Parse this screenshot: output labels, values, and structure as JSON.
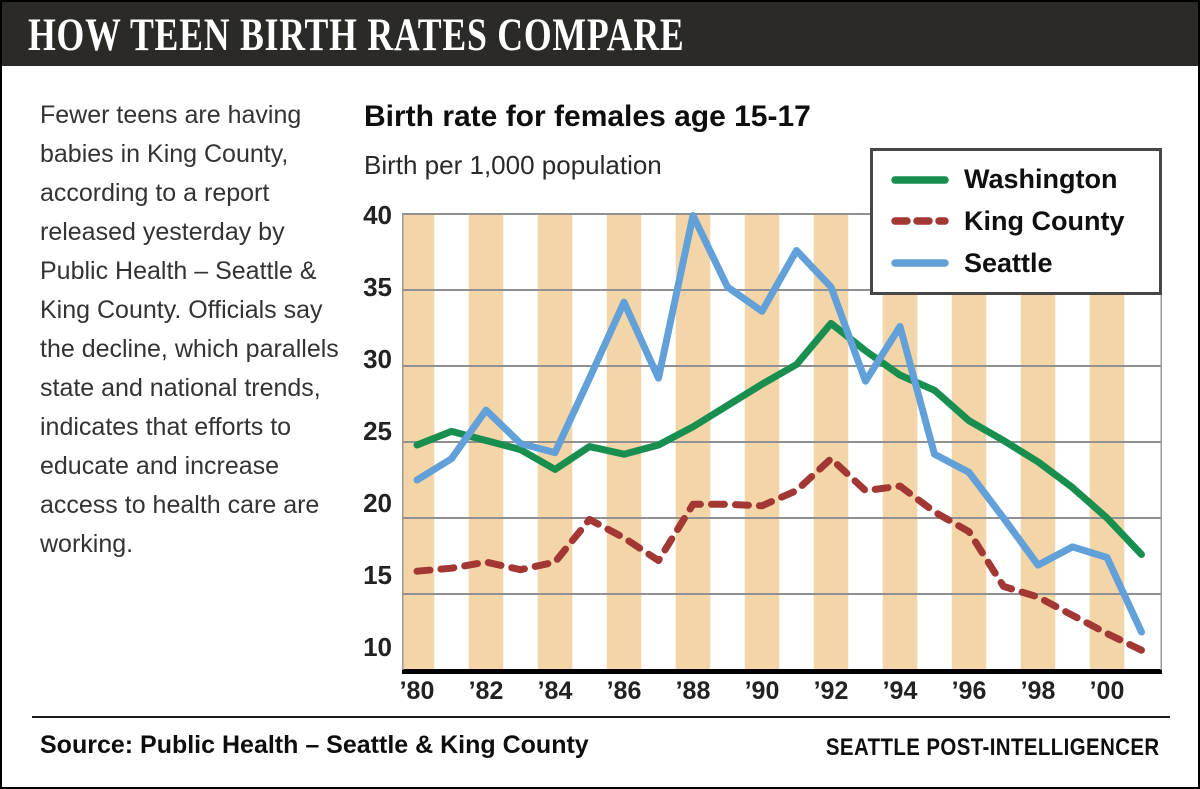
{
  "banner": {
    "title": "HOW TEEN BIRTH RATES COMPARE"
  },
  "intro_text": "Fewer teens are having babies in King County, according to a report released yesterday by Public Health – Seattle & King County. Officials say the decline, which parallels state and national trends, indicates that efforts to educate and increase access to health care are working.",
  "chart": {
    "title": "Birth rate for females age 15-17",
    "subtitle": "Birth per 1,000 population"
  },
  "chart_data": {
    "type": "line",
    "x": [
      1980,
      1981,
      1982,
      1983,
      1984,
      1985,
      1986,
      1987,
      1988,
      1989,
      1990,
      1991,
      1992,
      1993,
      1994,
      1995,
      1996,
      1997,
      1998,
      1999,
      2000,
      2001
    ],
    "x_tick_labels": [
      "’80",
      "’82",
      "’84",
      "’86",
      "’88",
      "’90",
      "’92",
      "’94",
      "’96",
      "’98",
      "’00"
    ],
    "yticks": [
      40,
      35,
      30,
      25,
      20,
      15,
      10
    ],
    "ylim": [
      10,
      40
    ],
    "grid": "horizontal",
    "legend_position": "top-right",
    "band_color": "#f3d5a7",
    "gridline_color": "#909090",
    "axis_color": "#000000",
    "series": [
      {
        "name": "Washington",
        "color": "#188f4e",
        "style": "solid",
        "values": [
          24.8,
          25.7,
          25.1,
          24.5,
          23.2,
          24.7,
          24.2,
          24.8,
          26.0,
          27.4,
          28.8,
          30.1,
          32.8,
          31.0,
          29.4,
          28.4,
          26.4,
          25.1,
          23.7,
          22.0,
          20.0,
          17.6
        ]
      },
      {
        "name": "King County",
        "color": "#a23733",
        "style": "dashed",
        "values": [
          16.5,
          16.7,
          17.1,
          16.6,
          17.1,
          19.9,
          18.7,
          17.2,
          20.9,
          20.9,
          20.8,
          21.8,
          23.9,
          21.8,
          22.1,
          20.4,
          19.1,
          15.5,
          14.8,
          13.6,
          12.4,
          11.3
        ]
      },
      {
        "name": "Seattle",
        "color": "#61a0d8",
        "style": "solid",
        "values": [
          22.5,
          23.9,
          27.1,
          24.9,
          24.3,
          29.2,
          34.2,
          29.2,
          39.9,
          35.2,
          33.6,
          37.6,
          35.2,
          29.0,
          32.6,
          24.2,
          23.0,
          20.0,
          16.9,
          18.1,
          17.4,
          12.5
        ]
      }
    ]
  },
  "footer": {
    "source": "Source: Public Health – Seattle & King County",
    "credit": "SEATTLE POST-INTELLIGENCER"
  }
}
